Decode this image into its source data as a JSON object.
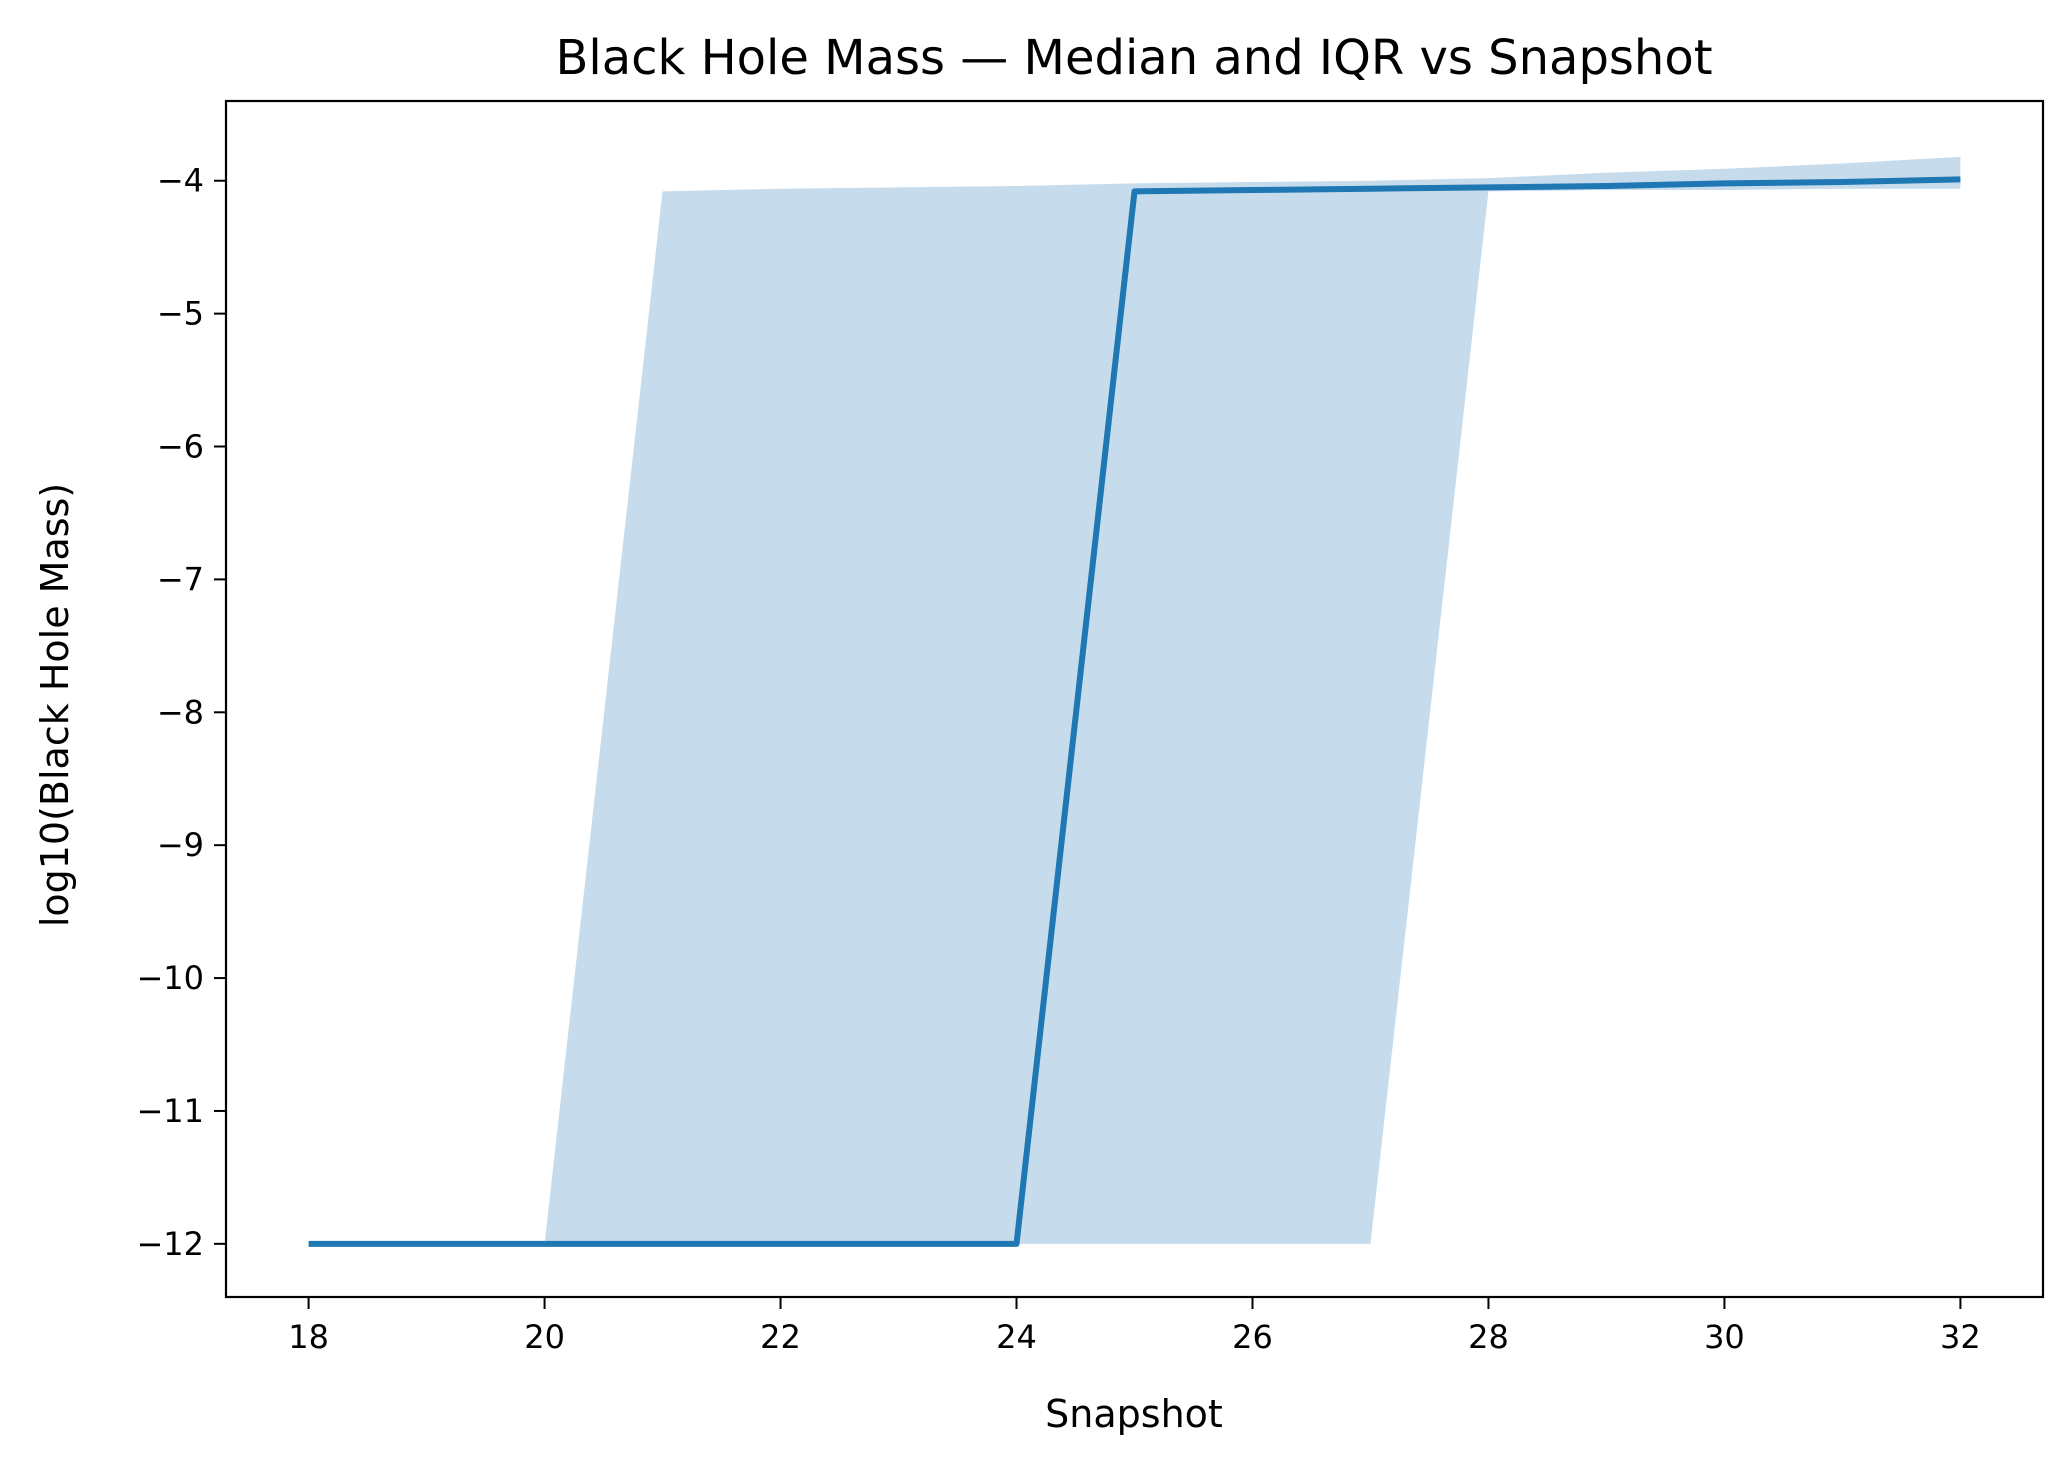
{
  "chart_data": {
    "type": "line",
    "title": "Black Hole Mass — Median and IQR vs Snapshot",
    "xlabel": "Snapshot",
    "ylabel": "log10(Black Hole Mass)",
    "xlim": [
      17.3,
      32.7
    ],
    "ylim": [
      -12.4,
      -3.4
    ],
    "xticks": [
      18,
      20,
      22,
      24,
      26,
      28,
      30,
      32
    ],
    "yticks": [
      -12,
      -11,
      -10,
      -9,
      -8,
      -7,
      -6,
      -5,
      -4
    ],
    "x": [
      18,
      19,
      20,
      21,
      22,
      23,
      24,
      25,
      26,
      27,
      28,
      29,
      30,
      31,
      32
    ],
    "series": [
      {
        "values": [
          -12,
          -12,
          -12,
          -12,
          -12,
          -12,
          -12,
          -4.08,
          -4.07,
          -4.06,
          -4.05,
          -4.04,
          -4.02,
          -4.01,
          -3.99
        ]
      }
    ],
    "band": {
      "lower": [
        -12,
        -12,
        -12,
        -12,
        -12,
        -12,
        -12,
        -12,
        -12,
        -12,
        -4.08,
        -4.07,
        -4.07,
        -4.06,
        -4.06
      ],
      "upper": [
        -12,
        -12,
        -12,
        -4.08,
        -4.06,
        -4.05,
        -4.04,
        -4.02,
        -4.01,
        -4.0,
        -3.98,
        -3.94,
        -3.91,
        -3.87,
        -3.82
      ]
    },
    "grid": false,
    "line_color": "#1f77b4",
    "band_color": "#c6dcec"
  }
}
